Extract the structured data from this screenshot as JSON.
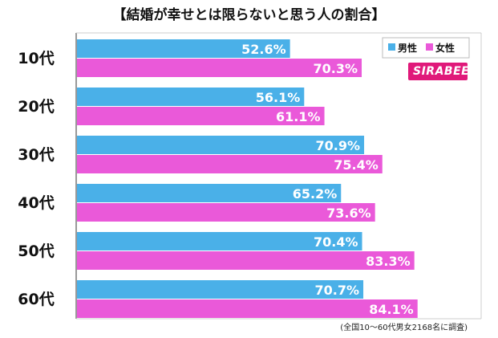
{
  "chart_data": {
    "type": "bar",
    "orientation": "horizontal",
    "title": "【結婚が幸せとは限らないと思う人の割合】",
    "categories": [
      "10代",
      "20代",
      "30代",
      "40代",
      "50代",
      "60代"
    ],
    "series": [
      {
        "name": "男性",
        "color": "#4ab0e8",
        "values": [
          52.6,
          56.1,
          70.9,
          65.2,
          70.4,
          70.7
        ]
      },
      {
        "name": "女性",
        "color": "#ea59d9",
        "values": [
          70.3,
          61.1,
          75.4,
          73.6,
          83.3,
          84.1
        ]
      }
    ],
    "value_suffix": "%",
    "xlim": [
      0,
      100
    ],
    "legend": "top-right",
    "grid": false
  },
  "footnote": "(全国10〜60代男女2168名に調査)",
  "logo": "SIRABEE"
}
